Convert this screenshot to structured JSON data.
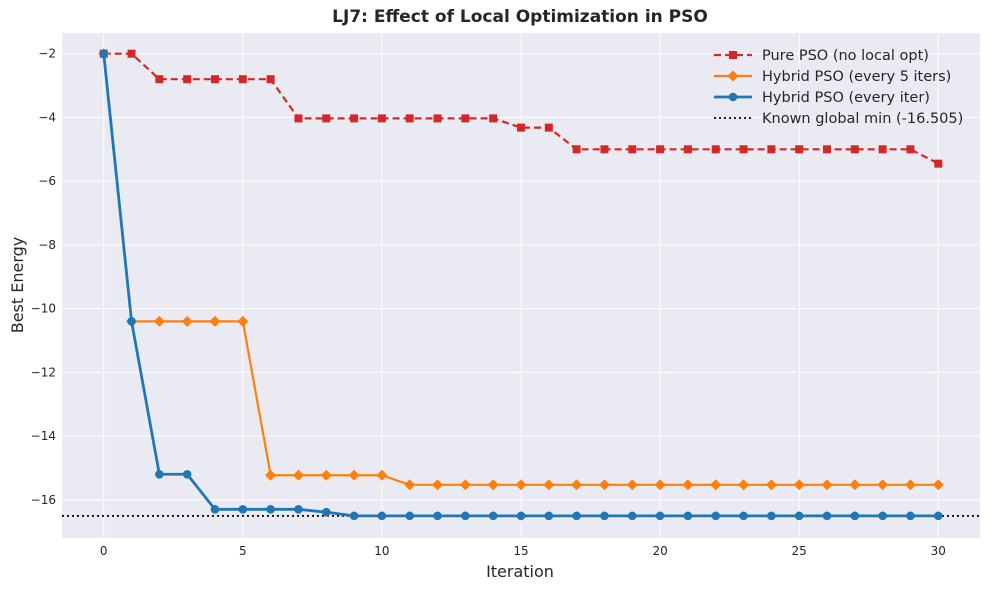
{
  "chart_data": {
    "type": "line",
    "title": "LJ7: Effect of Local Optimization in PSO",
    "xlabel": "Iteration",
    "ylabel": "Best Energy",
    "xlim": [
      -1.5,
      31.5
    ],
    "ylim": [
      -17.2,
      -1.35
    ],
    "xticks": [
      0,
      5,
      10,
      15,
      20,
      25,
      30
    ],
    "yticks": [
      -2,
      -4,
      -6,
      -8,
      -10,
      -12,
      -14,
      -16
    ],
    "grid": true,
    "legend_position": "top-right",
    "x": [
      0,
      1,
      2,
      3,
      4,
      5,
      6,
      7,
      8,
      9,
      10,
      11,
      12,
      13,
      14,
      15,
      16,
      17,
      18,
      19,
      20,
      21,
      22,
      23,
      24,
      25,
      26,
      27,
      28,
      29,
      30
    ],
    "series": [
      {
        "name": "Pure PSO (no local opt)",
        "color": "#d62728",
        "marker": "square",
        "line_style": "dashed",
        "values": [
          -2.0,
          -2.0,
          -2.8,
          -2.8,
          -2.8,
          -2.8,
          -2.8,
          -4.03,
          -4.03,
          -4.03,
          -4.03,
          -4.03,
          -4.03,
          -4.03,
          -4.03,
          -4.32,
          -4.32,
          -5.0,
          -5.0,
          -5.0,
          -5.0,
          -5.0,
          -5.0,
          -5.0,
          -5.0,
          -5.0,
          -5.0,
          -5.0,
          -5.0,
          -5.0,
          -5.45
        ]
      },
      {
        "name": "Hybrid PSO (every 5 iters)",
        "color": "#ff7f0e",
        "marker": "diamond",
        "line_style": "solid",
        "values": [
          -2.0,
          -10.4,
          -10.4,
          -10.4,
          -10.4,
          -10.4,
          -15.23,
          -15.23,
          -15.23,
          -15.23,
          -15.23,
          -15.53,
          -15.53,
          -15.53,
          -15.53,
          -15.53,
          -15.53,
          -15.53,
          -15.53,
          -15.53,
          -15.53,
          -15.53,
          -15.53,
          -15.53,
          -15.53,
          -15.53,
          -15.53,
          -15.53,
          -15.53,
          -15.53,
          -15.53
        ]
      },
      {
        "name": "Hybrid PSO (every iter)",
        "color": "#1f77b4",
        "marker": "circle",
        "line_style": "solid",
        "values": [
          -2.0,
          -10.4,
          -15.2,
          -15.2,
          -16.3,
          -16.3,
          -16.3,
          -16.3,
          -16.39,
          -16.505,
          -16.505,
          -16.505,
          -16.505,
          -16.505,
          -16.505,
          -16.505,
          -16.505,
          -16.505,
          -16.505,
          -16.505,
          -16.505,
          -16.505,
          -16.505,
          -16.505,
          -16.505,
          -16.505,
          -16.505,
          -16.505,
          -16.505,
          -16.505,
          -16.505
        ]
      }
    ],
    "reference_line": {
      "name": "Known global min (-16.505)",
      "value": -16.505,
      "color": "#000000",
      "line_style": "dotted"
    }
  }
}
